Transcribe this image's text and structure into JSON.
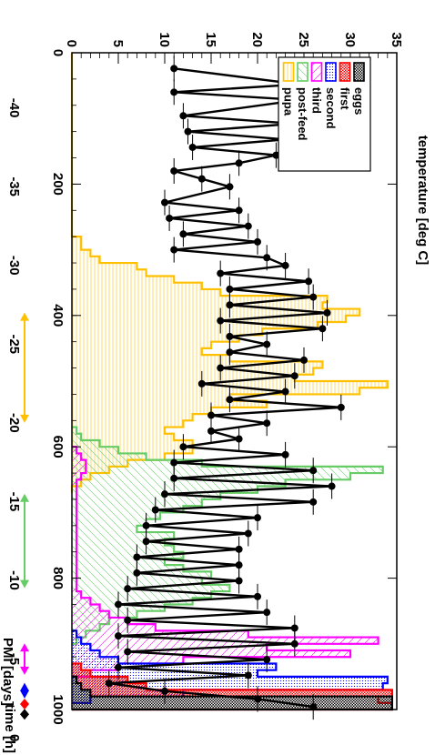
{
  "chart_data": {
    "type": "histogram+line",
    "orientation": "rotated 90° clockwise",
    "xlabel": "time [h]",
    "ylabel": "temperature [deg C]",
    "x2label": "PMI [days]",
    "xlim": [
      0,
      1000
    ],
    "ylim": [
      0,
      35
    ],
    "x2lim": [
      -43.5,
      -1.8
    ],
    "x_ticks": [
      0,
      200,
      400,
      600,
      800,
      1000
    ],
    "y_ticks": [
      0,
      5,
      10,
      15,
      20,
      25,
      30,
      35
    ],
    "x2_ticks": [
      -40,
      -35,
      -30,
      -25,
      -20,
      -15,
      -10,
      -5,
      0
    ],
    "legend": {
      "placement": "top-left",
      "entries": [
        {
          "key": "eggs",
          "label": "eggs",
          "color": "#000000"
        },
        {
          "key": "first",
          "label": "first",
          "color": "#ff0000"
        },
        {
          "key": "second",
          "label": "second",
          "color": "#0000ff"
        },
        {
          "key": "third",
          "label": "third",
          "color": "#ff00ff"
        },
        {
          "key": "postfeed",
          "label": "post-feed",
          "color": "#66cc66"
        },
        {
          "key": "pupa",
          "label": "pupa",
          "color": "#ffc000"
        }
      ]
    },
    "temperature": {
      "color": "#000000",
      "points": [
        [
          24,
          11
        ],
        [
          48,
          24.5
        ],
        [
          60,
          11
        ],
        [
          72,
          24.5
        ],
        [
          96,
          12
        ],
        [
          108,
          24
        ],
        [
          120,
          12.5
        ],
        [
          132,
          23
        ],
        [
          144,
          13
        ],
        [
          156,
          22
        ],
        [
          168,
          18
        ],
        [
          180,
          11
        ],
        [
          192,
          14
        ],
        [
          204,
          17
        ],
        [
          228,
          10
        ],
        [
          240,
          18
        ],
        [
          252,
          10.5
        ],
        [
          264,
          19
        ],
        [
          276,
          12
        ],
        [
          288,
          20
        ],
        [
          300,
          11
        ],
        [
          312,
          21
        ],
        [
          324,
          23
        ],
        [
          336,
          16
        ],
        [
          348,
          25.5
        ],
        [
          360,
          17
        ],
        [
          372,
          26
        ],
        [
          384,
          17
        ],
        [
          396,
          27.5
        ],
        [
          408,
          16
        ],
        [
          420,
          27
        ],
        [
          432,
          17
        ],
        [
          444,
          21
        ],
        [
          456,
          17
        ],
        [
          468,
          25
        ],
        [
          480,
          16
        ],
        [
          492,
          24
        ],
        [
          504,
          14
        ],
        [
          516,
          23
        ],
        [
          528,
          17
        ],
        [
          540,
          29
        ],
        [
          552,
          15
        ],
        [
          564,
          21
        ],
        [
          576,
          15
        ],
        [
          588,
          18
        ],
        [
          600,
          12
        ],
        [
          612,
          23
        ],
        [
          624,
          11
        ],
        [
          636,
          26
        ],
        [
          648,
          11
        ],
        [
          660,
          28
        ],
        [
          672,
          10
        ],
        [
          684,
          26
        ],
        [
          696,
          9
        ],
        [
          708,
          20
        ],
        [
          720,
          8
        ],
        [
          732,
          19
        ],
        [
          744,
          8
        ],
        [
          756,
          18
        ],
        [
          768,
          7
        ],
        [
          780,
          18
        ],
        [
          792,
          7
        ],
        [
          804,
          18
        ],
        [
          816,
          6
        ],
        [
          828,
          20
        ],
        [
          840,
          5
        ],
        [
          852,
          21
        ],
        [
          864,
          6
        ],
        [
          876,
          24
        ],
        [
          888,
          5
        ],
        [
          900,
          24
        ],
        [
          912,
          6
        ],
        [
          924,
          21
        ],
        [
          936,
          5
        ],
        [
          948,
          19
        ],
        [
          960,
          4
        ],
        [
          972,
          10
        ],
        [
          984,
          20
        ],
        [
          996,
          26
        ]
      ]
    },
    "histograms": [
      {
        "key": "pupa",
        "bins": [
          [
            0,
            10,
            0
          ],
          [
            10,
            20,
            0
          ],
          [
            20,
            30,
            0
          ],
          [
            30,
            40,
            0
          ],
          [
            40,
            50,
            0
          ],
          [
            50,
            60,
            0
          ],
          [
            60,
            70,
            0
          ],
          [
            70,
            80,
            0
          ],
          [
            80,
            90,
            0
          ],
          [
            90,
            100,
            0
          ],
          [
            100,
            110,
            0
          ],
          [
            110,
            120,
            0
          ],
          [
            120,
            130,
            0
          ],
          [
            130,
            140,
            0
          ],
          [
            140,
            150,
            0
          ],
          [
            150,
            160,
            0
          ],
          [
            160,
            170,
            0
          ],
          [
            170,
            180,
            0
          ],
          [
            180,
            190,
            0
          ],
          [
            190,
            200,
            0
          ],
          [
            200,
            210,
            0
          ],
          [
            210,
            220,
            0
          ],
          [
            220,
            230,
            0
          ],
          [
            230,
            240,
            0
          ],
          [
            240,
            250,
            0
          ],
          [
            250,
            260,
            0
          ],
          [
            260,
            270,
            0
          ],
          [
            270,
            280,
            0
          ],
          [
            280,
            290,
            1
          ],
          [
            290,
            300,
            1
          ],
          [
            300,
            310,
            2
          ],
          [
            310,
            320,
            3
          ],
          [
            320,
            330,
            7
          ],
          [
            330,
            340,
            8
          ],
          [
            340,
            350,
            11
          ],
          [
            350,
            360,
            14
          ],
          [
            360,
            370,
            16
          ],
          [
            370,
            380,
            27.5
          ],
          [
            380,
            390,
            27
          ],
          [
            390,
            400,
            31
          ],
          [
            400,
            410,
            29.5
          ],
          [
            410,
            420,
            26.5
          ],
          [
            420,
            430,
            20.5
          ],
          [
            430,
            440,
            18
          ],
          [
            440,
            450,
            15
          ],
          [
            450,
            460,
            14
          ],
          [
            460,
            470,
            17
          ],
          [
            470,
            480,
            27
          ],
          [
            480,
            490,
            26
          ],
          [
            490,
            500,
            24
          ],
          [
            500,
            510,
            34
          ],
          [
            510,
            520,
            31
          ],
          [
            520,
            530,
            17
          ],
          [
            530,
            540,
            21
          ],
          [
            540,
            550,
            15
          ],
          [
            550,
            560,
            13
          ],
          [
            560,
            570,
            12
          ],
          [
            570,
            580,
            10
          ],
          [
            580,
            590,
            11
          ],
          [
            590,
            600,
            13
          ],
          [
            600,
            610,
            13
          ],
          [
            610,
            620,
            10
          ],
          [
            620,
            630,
            6
          ],
          [
            630,
            640,
            4
          ],
          [
            640,
            650,
            2
          ],
          [
            650,
            660,
            1
          ],
          [
            660,
            670,
            0
          ]
        ]
      },
      {
        "key": "postfeed",
        "bins": [
          [
            570,
            580,
            0.5
          ],
          [
            580,
            590,
            1
          ],
          [
            590,
            600,
            3
          ],
          [
            600,
            610,
            5
          ],
          [
            610,
            620,
            8
          ],
          [
            620,
            630,
            14
          ],
          [
            630,
            640,
            33.5
          ],
          [
            640,
            650,
            30
          ],
          [
            650,
            660,
            23
          ],
          [
            660,
            670,
            20
          ],
          [
            670,
            680,
            16
          ],
          [
            680,
            690,
            14
          ],
          [
            690,
            700,
            12
          ],
          [
            700,
            710,
            9.5
          ],
          [
            710,
            720,
            8
          ],
          [
            720,
            730,
            7
          ],
          [
            730,
            740,
            11
          ],
          [
            740,
            750,
            10
          ],
          [
            750,
            760,
            11
          ],
          [
            760,
            770,
            12
          ],
          [
            770,
            780,
            10
          ],
          [
            780,
            790,
            12
          ],
          [
            790,
            800,
            15
          ],
          [
            800,
            810,
            14
          ],
          [
            810,
            820,
            17
          ],
          [
            820,
            830,
            15
          ],
          [
            830,
            840,
            13
          ],
          [
            840,
            850,
            10
          ],
          [
            850,
            860,
            7
          ],
          [
            860,
            870,
            4
          ],
          [
            870,
            880,
            3
          ],
          [
            880,
            890,
            1.5
          ],
          [
            890,
            900,
            0.5
          ]
        ]
      },
      {
        "key": "third",
        "bins": [
          [
            600,
            610,
            0.5
          ],
          [
            610,
            620,
            1
          ],
          [
            620,
            630,
            1.5
          ],
          [
            630,
            640,
            1.5
          ],
          [
            640,
            650,
            1
          ],
          [
            650,
            660,
            0.5
          ],
          [
            810,
            820,
            0.5
          ],
          [
            820,
            830,
            1
          ],
          [
            830,
            840,
            2
          ],
          [
            840,
            850,
            3
          ],
          [
            850,
            860,
            4
          ],
          [
            860,
            870,
            6
          ],
          [
            870,
            880,
            9
          ],
          [
            880,
            890,
            19
          ],
          [
            890,
            900,
            33
          ],
          [
            900,
            910,
            21
          ],
          [
            910,
            920,
            30
          ],
          [
            920,
            930,
            12
          ],
          [
            930,
            940,
            5
          ],
          [
            940,
            950,
            2
          ]
        ]
      },
      {
        "key": "second",
        "bins": [
          [
            880,
            890,
            0.5
          ],
          [
            890,
            900,
            1
          ],
          [
            900,
            910,
            2
          ],
          [
            910,
            920,
            3
          ],
          [
            920,
            930,
            5
          ],
          [
            930,
            940,
            22
          ],
          [
            940,
            950,
            20
          ],
          [
            950,
            960,
            34
          ],
          [
            960,
            970,
            33.5
          ],
          [
            970,
            980,
            12
          ],
          [
            980,
            990,
            2
          ]
        ]
      },
      {
        "key": "first",
        "bins": [
          [
            930,
            940,
            1
          ],
          [
            940,
            950,
            2
          ],
          [
            950,
            960,
            6
          ],
          [
            960,
            970,
            8
          ],
          [
            970,
            980,
            34.5
          ],
          [
            980,
            990,
            33
          ],
          [
            990,
            1000,
            34.5
          ]
        ]
      },
      {
        "key": "eggs",
        "bins": [
          [
            950,
            960,
            0.5
          ],
          [
            960,
            970,
            1
          ],
          [
            970,
            980,
            2
          ],
          [
            980,
            990,
            34.5
          ],
          [
            990,
            1000,
            34.5
          ]
        ]
      }
    ],
    "pmi_arrows": [
      {
        "from": -27,
        "to": -20,
        "color": "#ffc000"
      },
      {
        "from": -15.5,
        "to": -9.5,
        "color": "#66cc66"
      },
      {
        "from": -6,
        "to": -4,
        "color": "#ff00ff"
      },
      {
        "from": -3.5,
        "to": -2.5,
        "color": "#0000ff"
      },
      {
        "from": -2.5,
        "to": -1.8,
        "color": "#ff0000"
      },
      {
        "from": -1.8,
        "to": -1.2,
        "color": "#000000"
      }
    ]
  }
}
